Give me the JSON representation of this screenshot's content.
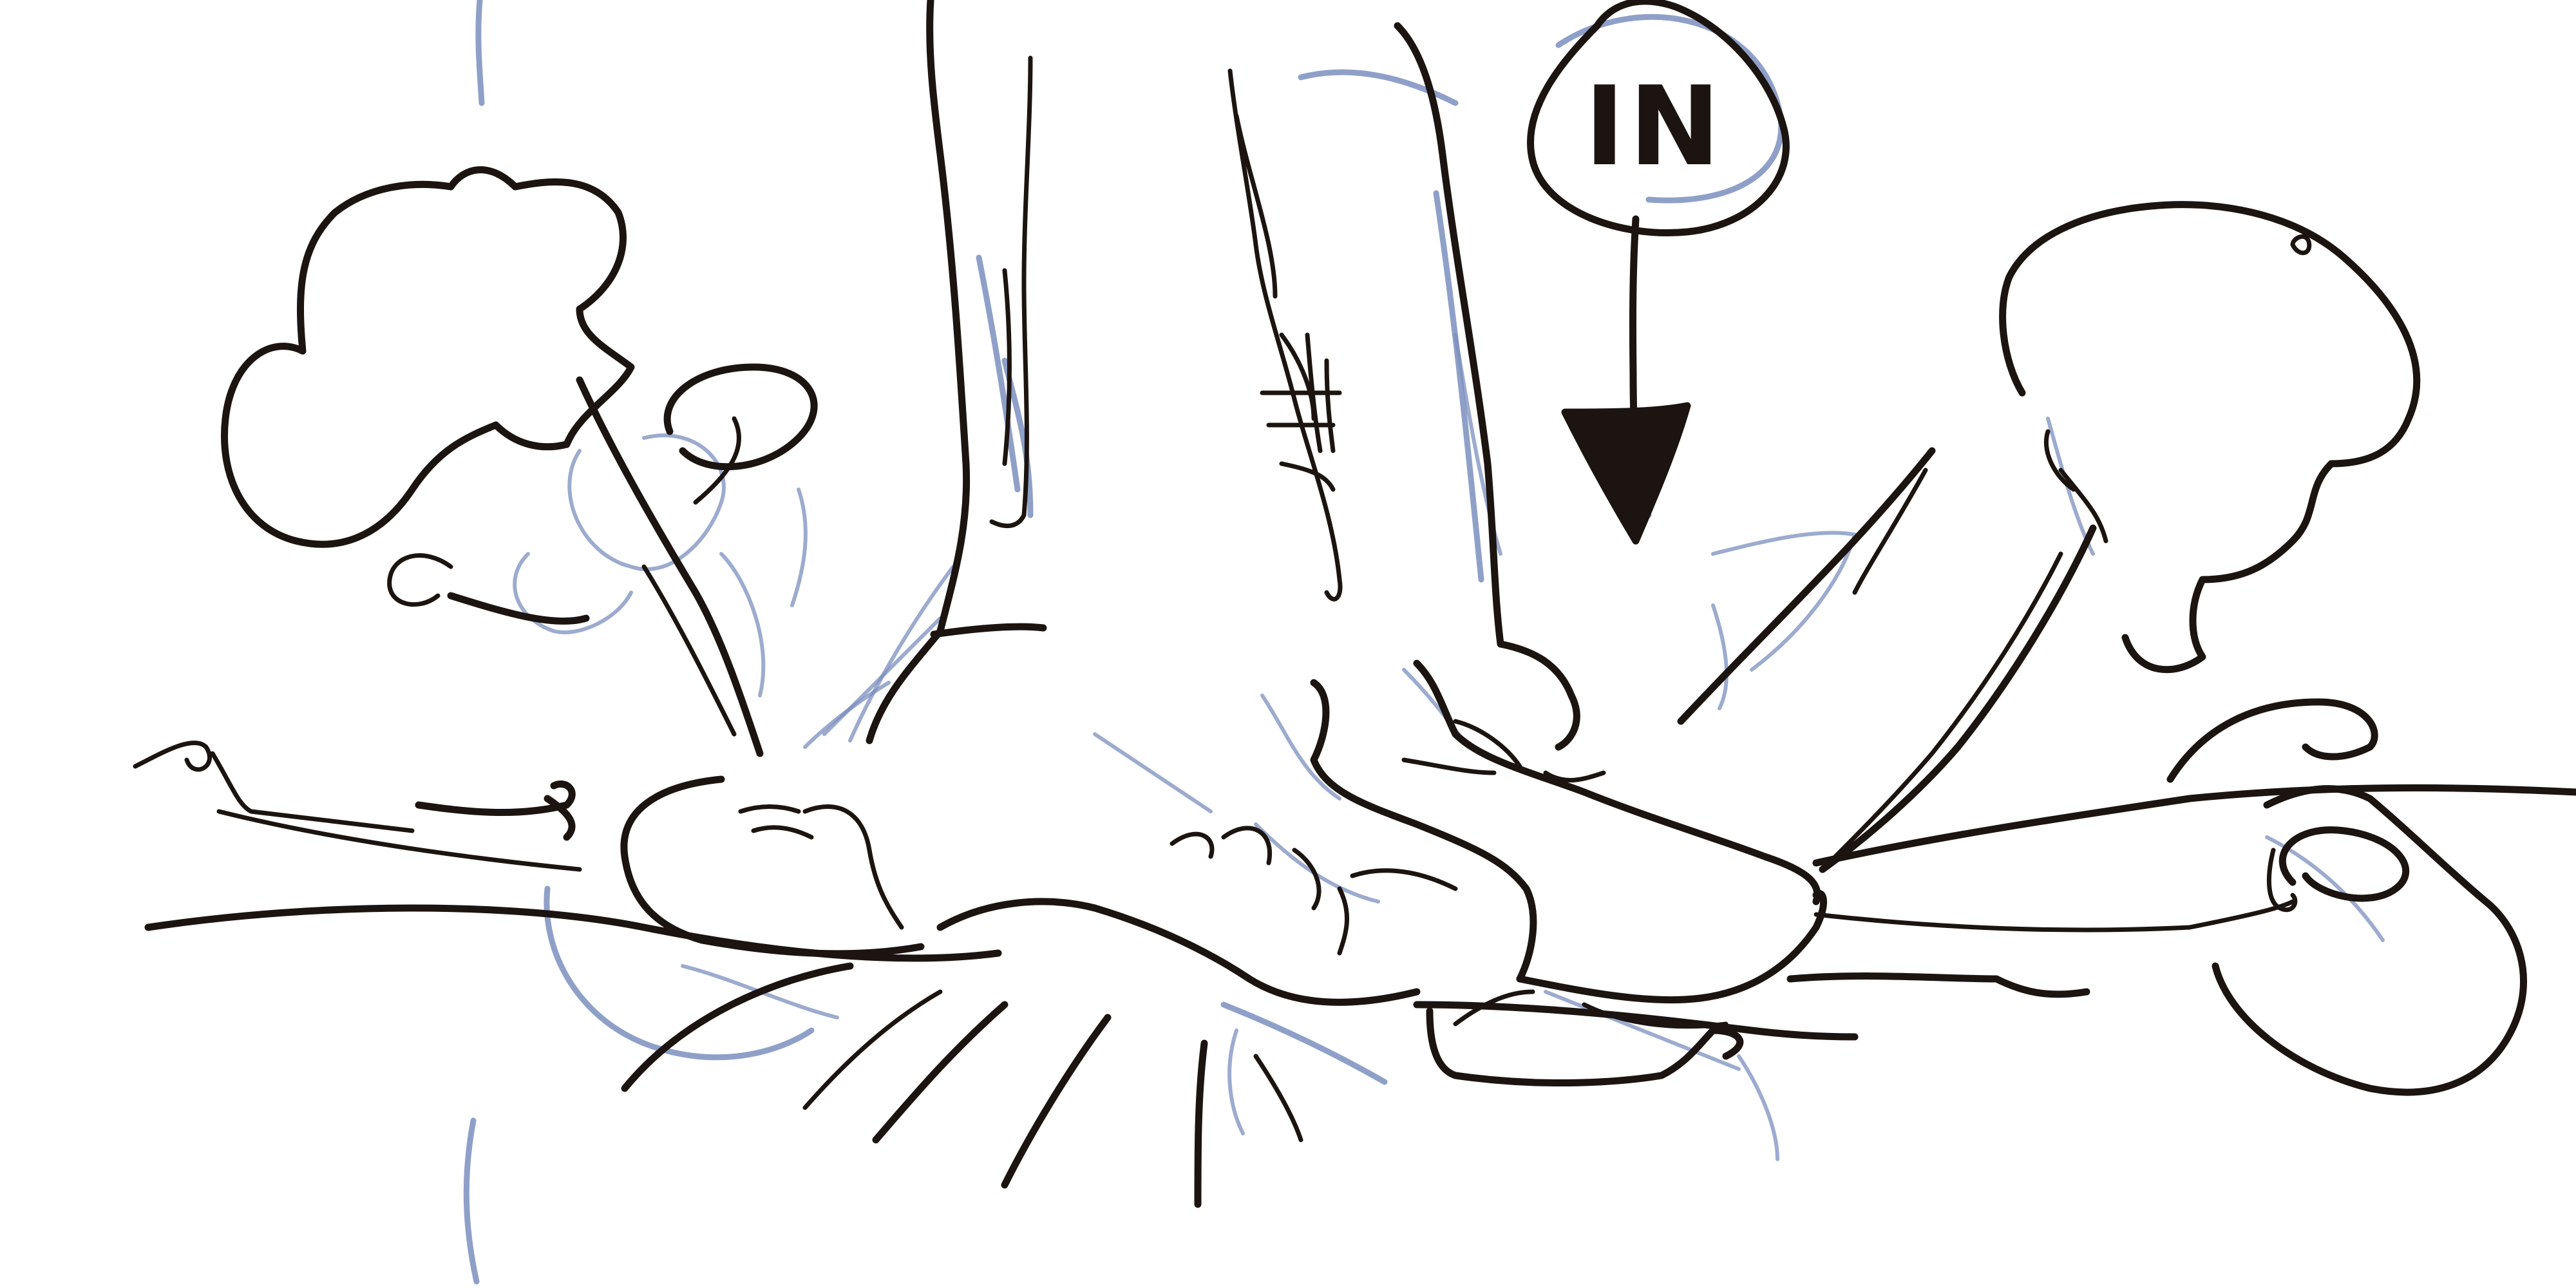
{
  "annotation": {
    "label": "IN"
  },
  "colors": {
    "background": "#ffffff",
    "ink": "#1c1410",
    "underdrawing": "#7b8fbe"
  }
}
